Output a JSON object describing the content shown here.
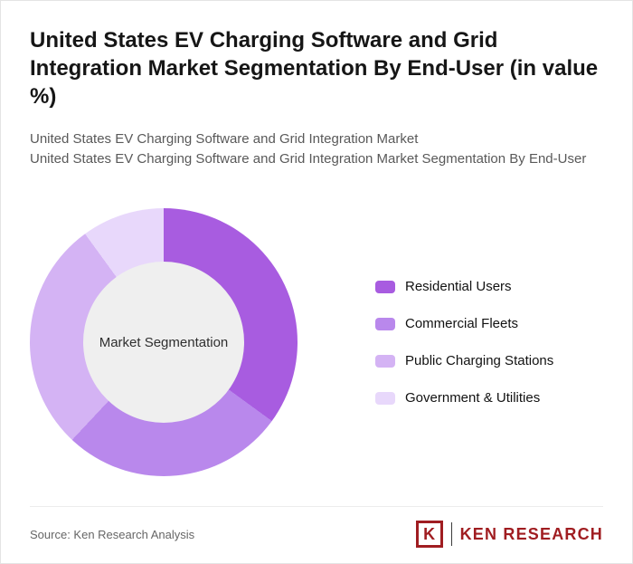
{
  "header": {
    "title": "United States EV Charging Software and Grid Integration Market Segmentation By End-User (in value %)",
    "subtitle1": "United States EV Charging Software and Grid Integration Market",
    "subtitle2": "United States EV Charging Software and Grid Integration Market Segmentation By End-User"
  },
  "chart_data": {
    "type": "pie",
    "variant": "donut",
    "title": "United States EV Charging Software and Grid Integration Market Segmentation By End-User (in value %)",
    "center_label": "Market Segmentation",
    "start_angle_deg": 0,
    "direction": "clockwise",
    "legend_position": "right",
    "center_circle_color": "#efefef",
    "segments": [
      {
        "label": "Residential Users",
        "value": 35,
        "color": "#a85ce0"
      },
      {
        "label": "Commercial Fleets",
        "value": 27,
        "color": "#b988ec"
      },
      {
        "label": "Public Charging Stations",
        "value": 28,
        "color": "#d4b3f4"
      },
      {
        "label": "Government & Utilities",
        "value": 10,
        "color": "#e8d8fb"
      }
    ]
  },
  "footer": {
    "source": "Source: Ken Research Analysis",
    "logo": {
      "letter": "K",
      "brand": "KEN RESEARCH",
      "color": "#a01d21"
    }
  }
}
